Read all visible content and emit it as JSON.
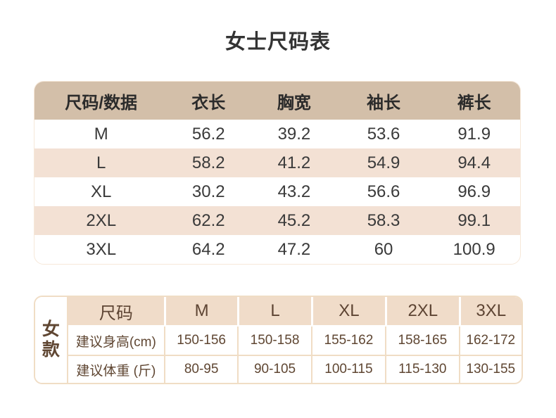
{
  "title": "女士尺码表",
  "chart_data": [
    {
      "type": "table",
      "title": "女士尺码表",
      "headers": [
        "尺码/数据",
        "衣长",
        "胸宽",
        "袖长",
        "裤长"
      ],
      "rows": [
        [
          "M",
          "56.2",
          "39.2",
          "53.6",
          "91.9"
        ],
        [
          "L",
          "58.2",
          "41.2",
          "54.9",
          "94.4"
        ],
        [
          "XL",
          "30.2",
          "43.2",
          "56.6",
          "96.9"
        ],
        [
          "2XL",
          "62.2",
          "45.2",
          "58.3",
          "99.1"
        ],
        [
          "3XL",
          "64.2",
          "47.2",
          "60",
          "100.9"
        ]
      ]
    },
    {
      "type": "table",
      "group_label": "女款",
      "headers": [
        "尺码",
        "M",
        "L",
        "XL",
        "2XL",
        "3XL"
      ],
      "rows": [
        [
          "建议身高(cm)",
          "150-156",
          "150-158",
          "155-162",
          "158-165",
          "162-172"
        ],
        [
          "建议体重 (斤)",
          "80-95",
          "90-105",
          "100-115",
          "115-130",
          "130-155"
        ]
      ]
    }
  ],
  "colors": {
    "background": "#ffffff",
    "table1_header_bg": "#d3bfa9",
    "table1_alt_row_bg": "#f3e1d4",
    "table1_text": "#333333",
    "table2_header_bg": "#f0dcc9",
    "table2_border": "#f0ddc5",
    "table2_text": "#5f4632"
  }
}
